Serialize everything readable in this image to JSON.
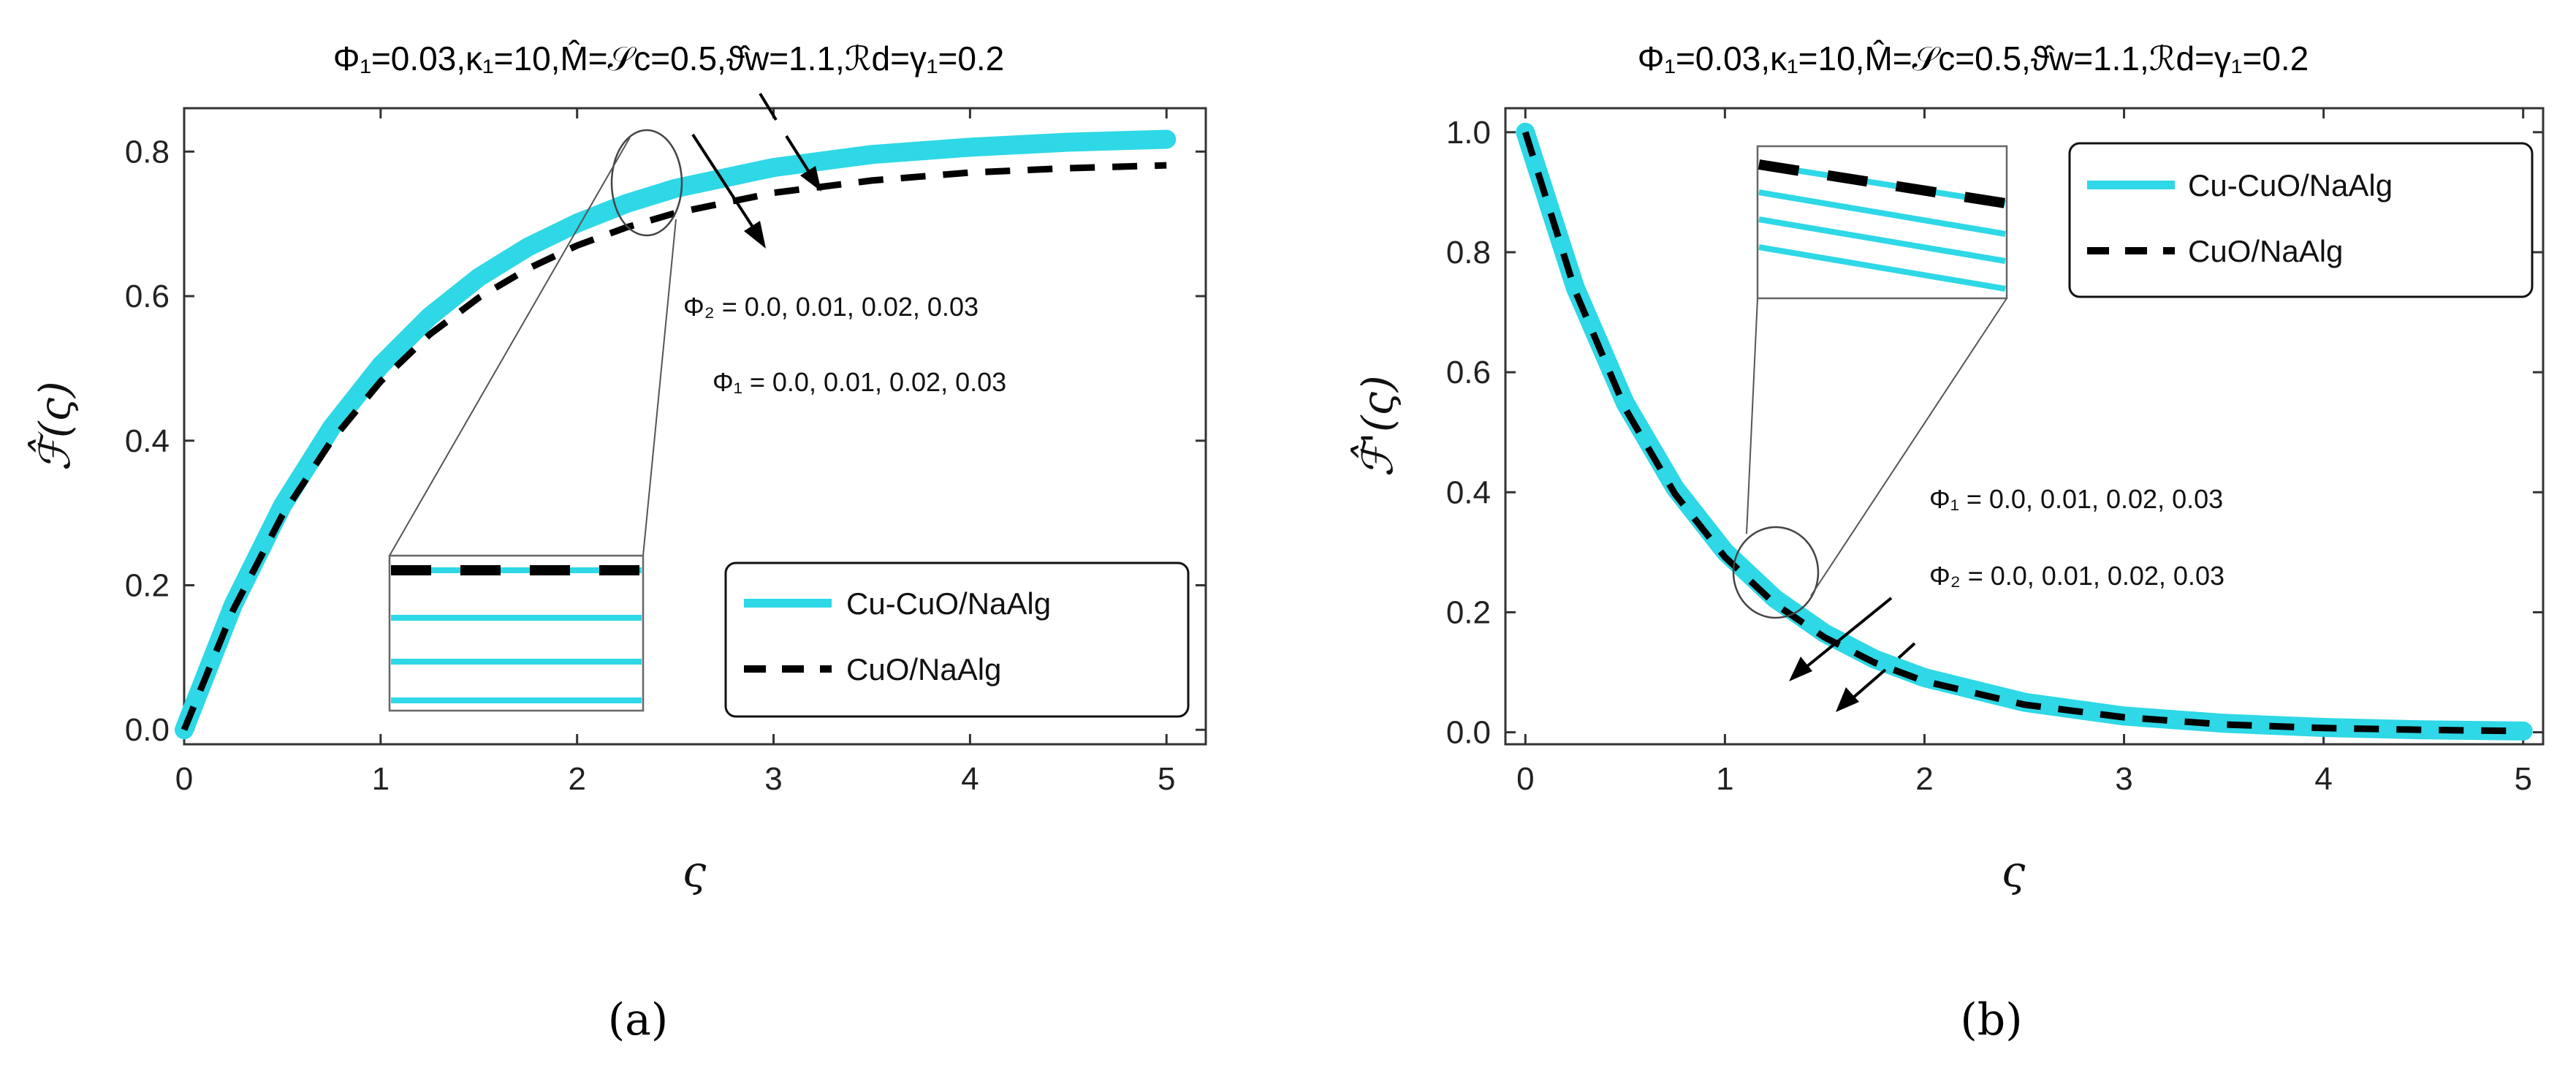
{
  "chart_data": [
    {
      "type": "line",
      "panel": "a",
      "title": "Φ₁=0.03,κ₁=10,M̂=𝒮c=0.5,ϑ̂w=1.1,ℛd=γ₁=0.2",
      "xlabel": "ς",
      "ylabel": "ℱ̂(ς)",
      "xlim": [
        0,
        5.2
      ],
      "ylim": [
        -0.02,
        0.86
      ],
      "xticks": [
        0,
        1,
        2,
        3,
        4,
        5
      ],
      "yticks": [
        0.0,
        0.2,
        0.4,
        0.6,
        0.8
      ],
      "ytick_labels": [
        "0.0",
        "0.2",
        "0.4",
        "0.6",
        "0.8"
      ],
      "grid": false,
      "legend_position": "bottom-right",
      "x": [
        0,
        0.25,
        0.5,
        0.75,
        1.0,
        1.25,
        1.5,
        1.75,
        2.0,
        2.25,
        2.5,
        3.0,
        3.5,
        4.0,
        4.5,
        5.0
      ],
      "series": [
        {
          "name": "Cu-CuO/NaAlg",
          "style": "solid",
          "color": "#2ed8e6",
          "values": [
            0,
            0.173,
            0.31,
            0.418,
            0.504,
            0.572,
            0.626,
            0.668,
            0.701,
            0.728,
            0.749,
            0.778,
            0.796,
            0.806,
            0.813,
            0.817
          ]
        },
        {
          "name": "CuO/NaAlg",
          "style": "dashed",
          "color": "#000000",
          "values": [
            0,
            0.166,
            0.297,
            0.4,
            0.482,
            0.547,
            0.598,
            0.638,
            0.67,
            0.695,
            0.715,
            0.743,
            0.76,
            0.771,
            0.777,
            0.781
          ]
        }
      ],
      "annotations": [
        "Φ₂ = 0.0, 0.01, 0.02, 0.03",
        "Φ₁ = 0.0, 0.01, 0.02, 0.03"
      ],
      "caption": "(a)"
    },
    {
      "type": "line",
      "panel": "b",
      "title": "Φ₁=0.03,κ₁=10,M̂=𝒮c=0.5,ϑ̂w=1.1,ℛd=γ₁=0.2",
      "xlabel": "ς",
      "ylabel": "ℱ̂'(ς)",
      "xlim": [
        -0.1,
        5.1
      ],
      "ylim": [
        -0.02,
        1.04
      ],
      "xticks": [
        0,
        1,
        2,
        3,
        4,
        5
      ],
      "yticks": [
        0.0,
        0.2,
        0.4,
        0.6,
        0.8,
        1.0
      ],
      "ytick_labels": [
        "0.0",
        "0.2",
        "0.4",
        "0.6",
        "0.8",
        "1.0"
      ],
      "grid": false,
      "legend_position": "top-right",
      "x": [
        0,
        0.25,
        0.5,
        0.75,
        1.0,
        1.25,
        1.5,
        1.75,
        2.0,
        2.5,
        3.0,
        3.5,
        4.0,
        4.5,
        5.0
      ],
      "series": [
        {
          "name": "Cu-CuO/NaAlg",
          "style": "solid",
          "color": "#2ed8e6",
          "values": [
            1.0,
            0.741,
            0.549,
            0.407,
            0.301,
            0.223,
            0.165,
            0.122,
            0.091,
            0.05,
            0.027,
            0.015,
            0.008,
            0.004,
            0.002
          ]
        },
        {
          "name": "CuO/NaAlg",
          "style": "dashed",
          "color": "#000000",
          "values": [
            1.0,
            0.735,
            0.54,
            0.397,
            0.292,
            0.214,
            0.158,
            0.116,
            0.085,
            0.046,
            0.025,
            0.013,
            0.007,
            0.004,
            0.002
          ]
        }
      ],
      "annotations": [
        "Φ₁ = 0.0, 0.01, 0.02, 0.03",
        "Φ₂ = 0.0, 0.01, 0.02, 0.03"
      ],
      "caption": "(b)"
    }
  ]
}
